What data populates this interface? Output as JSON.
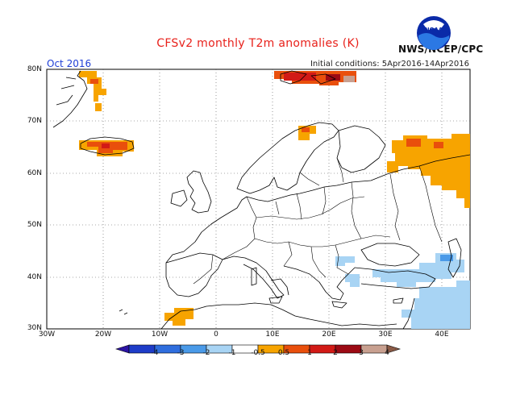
{
  "header": {
    "title": "CFSv2 monthly T2m anomalies (K)",
    "period": "Oct 2016",
    "initial_conditions": "Initial conditions: 5Apr2016-14Apr2016",
    "agency": "NWS/NCEP/CPC",
    "logo_text": "NOAA"
  },
  "axes": {
    "lon_ticks": [
      "30W",
      "20W",
      "10W",
      "0",
      "10E",
      "20E",
      "30E",
      "40E"
    ],
    "lat_ticks": [
      "80N",
      "70N",
      "60N",
      "50N",
      "40N",
      "30N"
    ]
  },
  "colorbar": {
    "labels": [
      "-4",
      "-3",
      "-2",
      "-1",
      "-0.5",
      "0.5",
      "1",
      "2",
      "3",
      "4"
    ],
    "colors": [
      "#2c14a4",
      "#1e3cc8",
      "#2f6ede",
      "#4a9ae8",
      "#a8d4f4",
      "#ffffff",
      "#f7a400",
      "#e94f0c",
      "#d21a16",
      "#9c0a14",
      "#c8a090",
      "#8a5a46"
    ]
  },
  "colors": {
    "coast": "#000000",
    "title": "#e8201a",
    "period": "#1f3fd6"
  }
}
